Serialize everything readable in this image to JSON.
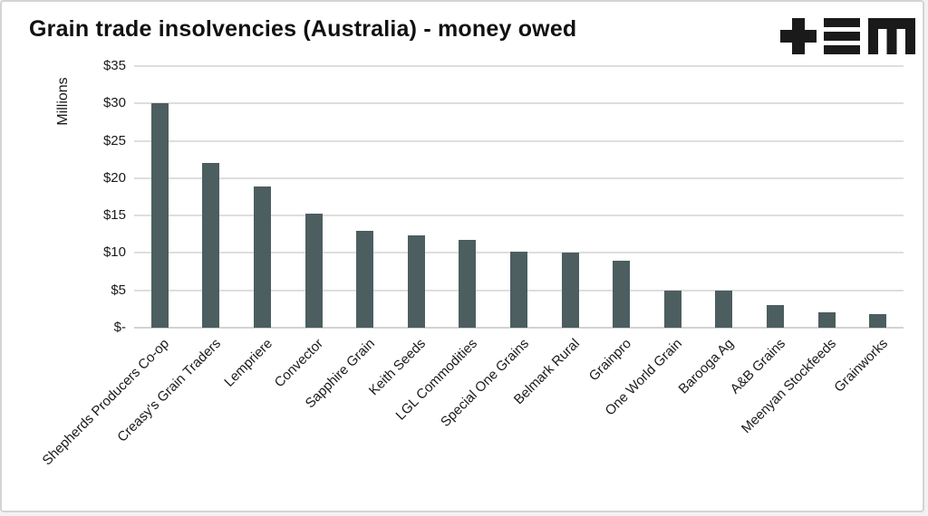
{
  "page": {
    "title": "Grain trade insolvencies (Australia) - money owed"
  },
  "logo": {
    "name": "tem-plus-equals-m-logo",
    "color": "#1a1a1a"
  },
  "chart_data": {
    "type": "bar",
    "title": "Grain trade insolvencies (Australia) - money owed",
    "xlabel": "",
    "ylabel": "Millions",
    "ylim": [
      0,
      35
    ],
    "ytick_step": 5,
    "ytick_labels": [
      "$-",
      "$5",
      "$10",
      "$15",
      "$20",
      "$25",
      "$30",
      "$35"
    ],
    "grid": true,
    "legend_position": "none",
    "bar_color": "#4c5e5f",
    "categories": [
      "Shepherds Producers Co-op",
      "Creasy's Grain Traders",
      "Lempriere",
      "Convector",
      "Sapphire Grain",
      "Keith Seeds",
      "LGL Commodities",
      "Special One Grains",
      "Belmark Rural",
      "Grainpro",
      "One World Grain",
      "Barooga Ag",
      "A&B Grains",
      "Meenyan Stockfeeds",
      "Grainworks"
    ],
    "values": [
      30.0,
      22.0,
      18.9,
      15.3,
      13.0,
      12.4,
      11.7,
      10.2,
      10.0,
      9.0,
      5.0,
      5.0,
      3.0,
      2.1,
      1.8
    ],
    "values_unit": "millions AUD"
  }
}
